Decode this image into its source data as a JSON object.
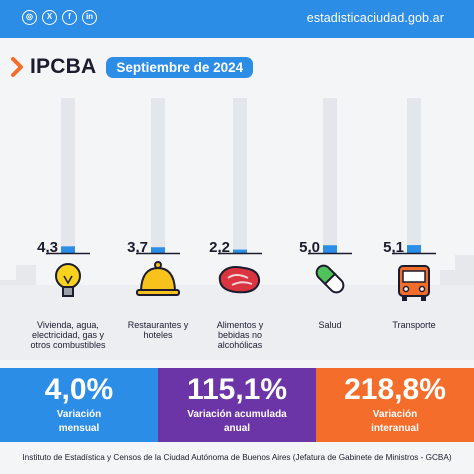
{
  "header": {
    "site": "estadisticaciudad.gob.ar",
    "social_icons": [
      "instagram-icon",
      "x-icon",
      "facebook-icon",
      "linkedin-icon"
    ]
  },
  "title": {
    "brand": "IPCBA",
    "period": "Septiembre de 2024"
  },
  "chart_data": {
    "type": "bar",
    "categories": [
      "Vivienda, agua, electricidad, gas y otros combustibles",
      "Restaurantes y hoteles",
      "Alimentos y bebidas no alcohólicas",
      "Salud",
      "Transporte"
    ],
    "values": [
      4.3,
      3.7,
      2.2,
      5.0,
      5.1
    ],
    "value_labels": [
      "4,3",
      "3,7",
      "2,2",
      "5,0",
      "5,1"
    ],
    "icons": [
      "light-bulb-icon",
      "cloche-icon",
      "steak-icon",
      "pill-icon",
      "bus-icon"
    ],
    "ylim": [
      0,
      100
    ]
  },
  "summary": [
    {
      "value": "4,0%",
      "label_1": "Variación",
      "label_2": "mensual",
      "color": "#2c8de6"
    },
    {
      "value": "115,1%",
      "label_1": "Variación acumulada",
      "label_2": "anual",
      "color": "#6b35a7"
    },
    {
      "value": "218,8%",
      "label_1": "Variación",
      "label_2": "interanual",
      "color": "#f56d2b"
    }
  ],
  "footer": "Instituto de Estadística y Censos de la Ciudad Autónoma de Buenos Aires (Jefatura de Gabinete de Ministros - GCBA)",
  "colors": {
    "accent": "#2c8de6",
    "purple": "#6b35a7",
    "orange": "#f56d2b",
    "bar_track": "#e3e6eb",
    "bar_fill": "#2c8de6"
  }
}
